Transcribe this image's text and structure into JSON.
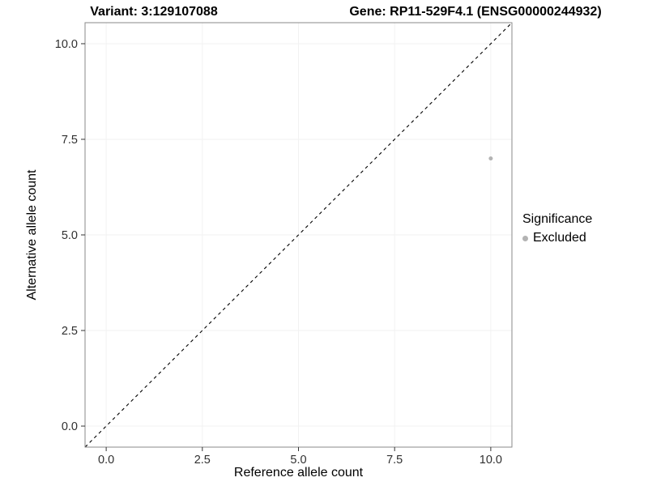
{
  "titles": {
    "variant": "Variant: 3:129107088",
    "gene": "Gene: RP11-529F4.1 (ENSG00000244932)"
  },
  "axes": {
    "x_label": "Reference allele count",
    "y_label": "Alternative allele count"
  },
  "legend": {
    "title": "Significance",
    "items": [
      {
        "label": "Excluded",
        "color": "#b3b3b3"
      }
    ]
  },
  "chart_data": {
    "type": "scatter",
    "title_left": "Variant: 3:129107088",
    "title_right": "Gene: RP11-529F4.1 (ENSG00000244932)",
    "xlabel": "Reference allele count",
    "ylabel": "Alternative allele count",
    "xlim": [
      -0.55,
      10.55
    ],
    "ylim": [
      -0.55,
      10.55
    ],
    "x_ticks": [
      0,
      2.5,
      5,
      7.5,
      10
    ],
    "y_ticks": [
      0,
      2.5,
      5,
      7.5,
      10
    ],
    "x_tick_labels": [
      "0.0",
      "2.5",
      "5.0",
      "7.5",
      "10.0"
    ],
    "y_tick_labels": [
      "0.0",
      "2.5",
      "5.0",
      "7.5",
      "10.0"
    ],
    "grid": "faint",
    "legend_position": "right",
    "panel_border_color": "#8a8a8a",
    "tick_color": "#333333",
    "tick_label_color": "#303030",
    "gridline_color": "#f2f2f2",
    "reference_line": {
      "type": "identity",
      "slope": 1,
      "intercept": 0,
      "style": "dashed",
      "color": "#000000"
    },
    "series": [
      {
        "name": "Excluded",
        "color": "#b3b3b3",
        "points": [
          {
            "x": 10,
            "y": 7
          }
        ]
      }
    ]
  }
}
